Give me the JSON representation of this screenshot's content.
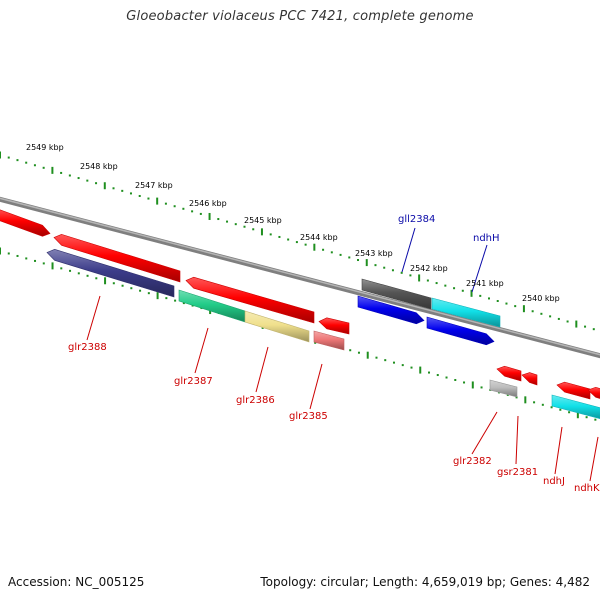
{
  "title": "Gloeobacter violaceus PCC 7421, complete genome",
  "footer": {
    "accession": "Accession: NC_005125",
    "topology": "Topology: circular; Length: 4,659,019 bp; Genes: 4,482"
  },
  "colors": {
    "backbone": "#7f7f7f",
    "tick": "#1f8f1f",
    "forward_label": "#0a0aa8",
    "reverse_label": "#cc0000"
  },
  "scale_labels": [
    "2549 kbp",
    "2548 kbp",
    "2547 kbp",
    "2546 kbp",
    "2545 kbp",
    "2544 kbp",
    "2543 kbp",
    "2542 kbp",
    "2541 kbp",
    "2540 kbp"
  ],
  "genes": [
    {
      "id": "glr2388",
      "label": "glr2388",
      "color": "#3c3c8a",
      "strand": "reverse"
    },
    {
      "id": "glr2387",
      "label": "glr2387",
      "color": "#22cc88",
      "strand": "reverse"
    },
    {
      "id": "glr2386",
      "label": "glr2386",
      "color": "#f0e08c",
      "strand": "reverse"
    },
    {
      "id": "glr2385",
      "label": "glr2385",
      "color": "#ee7777",
      "strand": "reverse"
    },
    {
      "id": "gll2384",
      "label": "gll2384",
      "color": "#555555",
      "strand": "forward"
    },
    {
      "id": "ndhH",
      "label": "ndhH",
      "color": "#11e0e8",
      "strand": "forward"
    },
    {
      "id": "glr2382",
      "label": "glr2382",
      "color": "#bbbbbb",
      "strand": "reverse"
    },
    {
      "id": "gsr2381",
      "label": "gsr2381",
      "color": "#ff0000",
      "strand": "reverse"
    },
    {
      "id": "ndhJ",
      "label": "ndhJ",
      "color": "#11e0e8",
      "strand": "reverse"
    },
    {
      "id": "ndhK",
      "label": "ndhK",
      "color": "#ff0000",
      "strand": "reverse"
    }
  ]
}
